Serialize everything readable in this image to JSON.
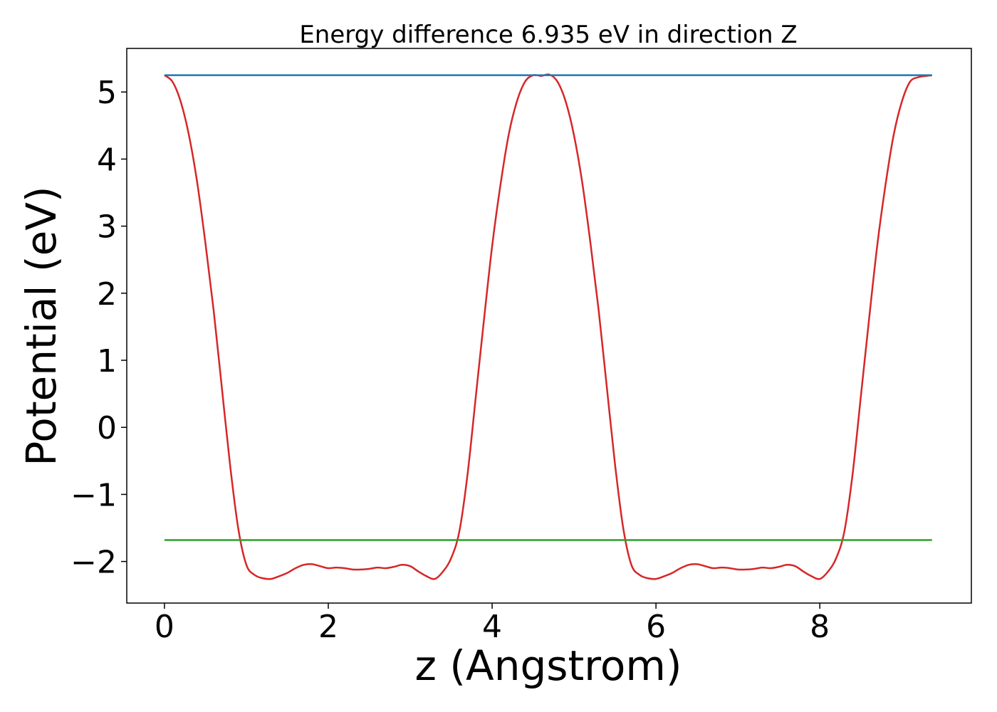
{
  "chart_data": {
    "type": "line",
    "title": "Energy difference 6.935 eV in direction Z",
    "xlabel": "z (Angstrom)",
    "ylabel": "Potential (eV)",
    "xlim": [
      -0.46,
      9.85
    ],
    "ylim": [
      -2.62,
      5.65
    ],
    "xticks": [
      0,
      2,
      4,
      6,
      8
    ],
    "yticks": [
      5,
      4,
      3,
      2,
      1,
      0,
      -1,
      -2
    ],
    "grid": false,
    "legend": "none",
    "series": [
      {
        "color": "#d62728",
        "x": [
          0,
          0.1,
          0.2,
          0.3,
          0.4,
          0.5,
          0.6,
          0.7,
          0.8,
          0.9,
          1.0,
          1.1,
          1.2,
          1.3,
          1.4,
          1.5,
          1.6,
          1.7,
          1.8,
          1.9,
          2.0,
          2.1,
          2.2,
          2.3,
          2.4,
          2.5,
          2.6,
          2.7,
          2.8,
          2.9,
          3.0,
          3.1,
          3.2,
          3.3,
          3.4,
          3.5,
          3.6,
          3.7,
          3.8,
          3.9,
          4.0,
          4.1,
          4.2,
          4.3,
          4.4,
          4.5,
          4.6,
          4.7,
          4.8,
          4.9,
          5.0,
          5.1,
          5.2,
          5.3,
          5.4,
          5.5,
          5.6,
          5.7,
          5.8,
          5.9,
          6.0,
          6.1,
          6.2,
          6.3,
          6.4,
          6.5,
          6.6,
          6.7,
          6.8,
          6.9,
          7.0,
          7.1,
          7.2,
          7.3,
          7.4,
          7.5,
          7.6,
          7.7,
          7.8,
          7.9,
          8.0,
          8.1,
          8.2,
          8.3,
          8.4,
          8.5,
          8.6,
          8.7,
          8.8,
          8.9,
          9.0,
          9.1,
          9.2,
          9.3,
          9.37
        ],
        "y": [
          5.25,
          5.15,
          4.85,
          4.35,
          3.65,
          2.75,
          1.75,
          0.6,
          -0.55,
          -1.5,
          -2.05,
          -2.2,
          -2.25,
          -2.26,
          -2.22,
          -2.17,
          -2.1,
          -2.05,
          -2.04,
          -2.07,
          -2.1,
          -2.09,
          -2.1,
          -2.12,
          -2.12,
          -2.11,
          -2.09,
          -2.1,
          -2.08,
          -2.05,
          -2.07,
          -2.15,
          -2.22,
          -2.26,
          -2.15,
          -1.95,
          -1.55,
          -0.7,
          0.45,
          1.6,
          2.7,
          3.6,
          4.35,
          4.85,
          5.15,
          5.25,
          5.24,
          5.26,
          5.15,
          4.85,
          4.35,
          3.65,
          2.75,
          1.75,
          0.6,
          -0.55,
          -1.5,
          -2.05,
          -2.2,
          -2.25,
          -2.26,
          -2.22,
          -2.17,
          -2.1,
          -2.05,
          -2.04,
          -2.07,
          -2.1,
          -2.09,
          -2.1,
          -2.12,
          -2.12,
          -2.11,
          -2.09,
          -2.1,
          -2.08,
          -2.05,
          -2.07,
          -2.15,
          -2.22,
          -2.26,
          -2.15,
          -1.95,
          -1.55,
          -0.7,
          0.45,
          1.6,
          2.7,
          3.6,
          4.35,
          4.85,
          5.15,
          5.22,
          5.24,
          5.25
        ]
      },
      {
        "color": "#1f77b4",
        "x": [
          0,
          9.37
        ],
        "y": [
          5.25,
          5.25
        ]
      },
      {
        "color": "#2ca02c",
        "x": [
          0,
          9.37
        ],
        "y": [
          -1.68,
          -1.68
        ]
      }
    ]
  }
}
